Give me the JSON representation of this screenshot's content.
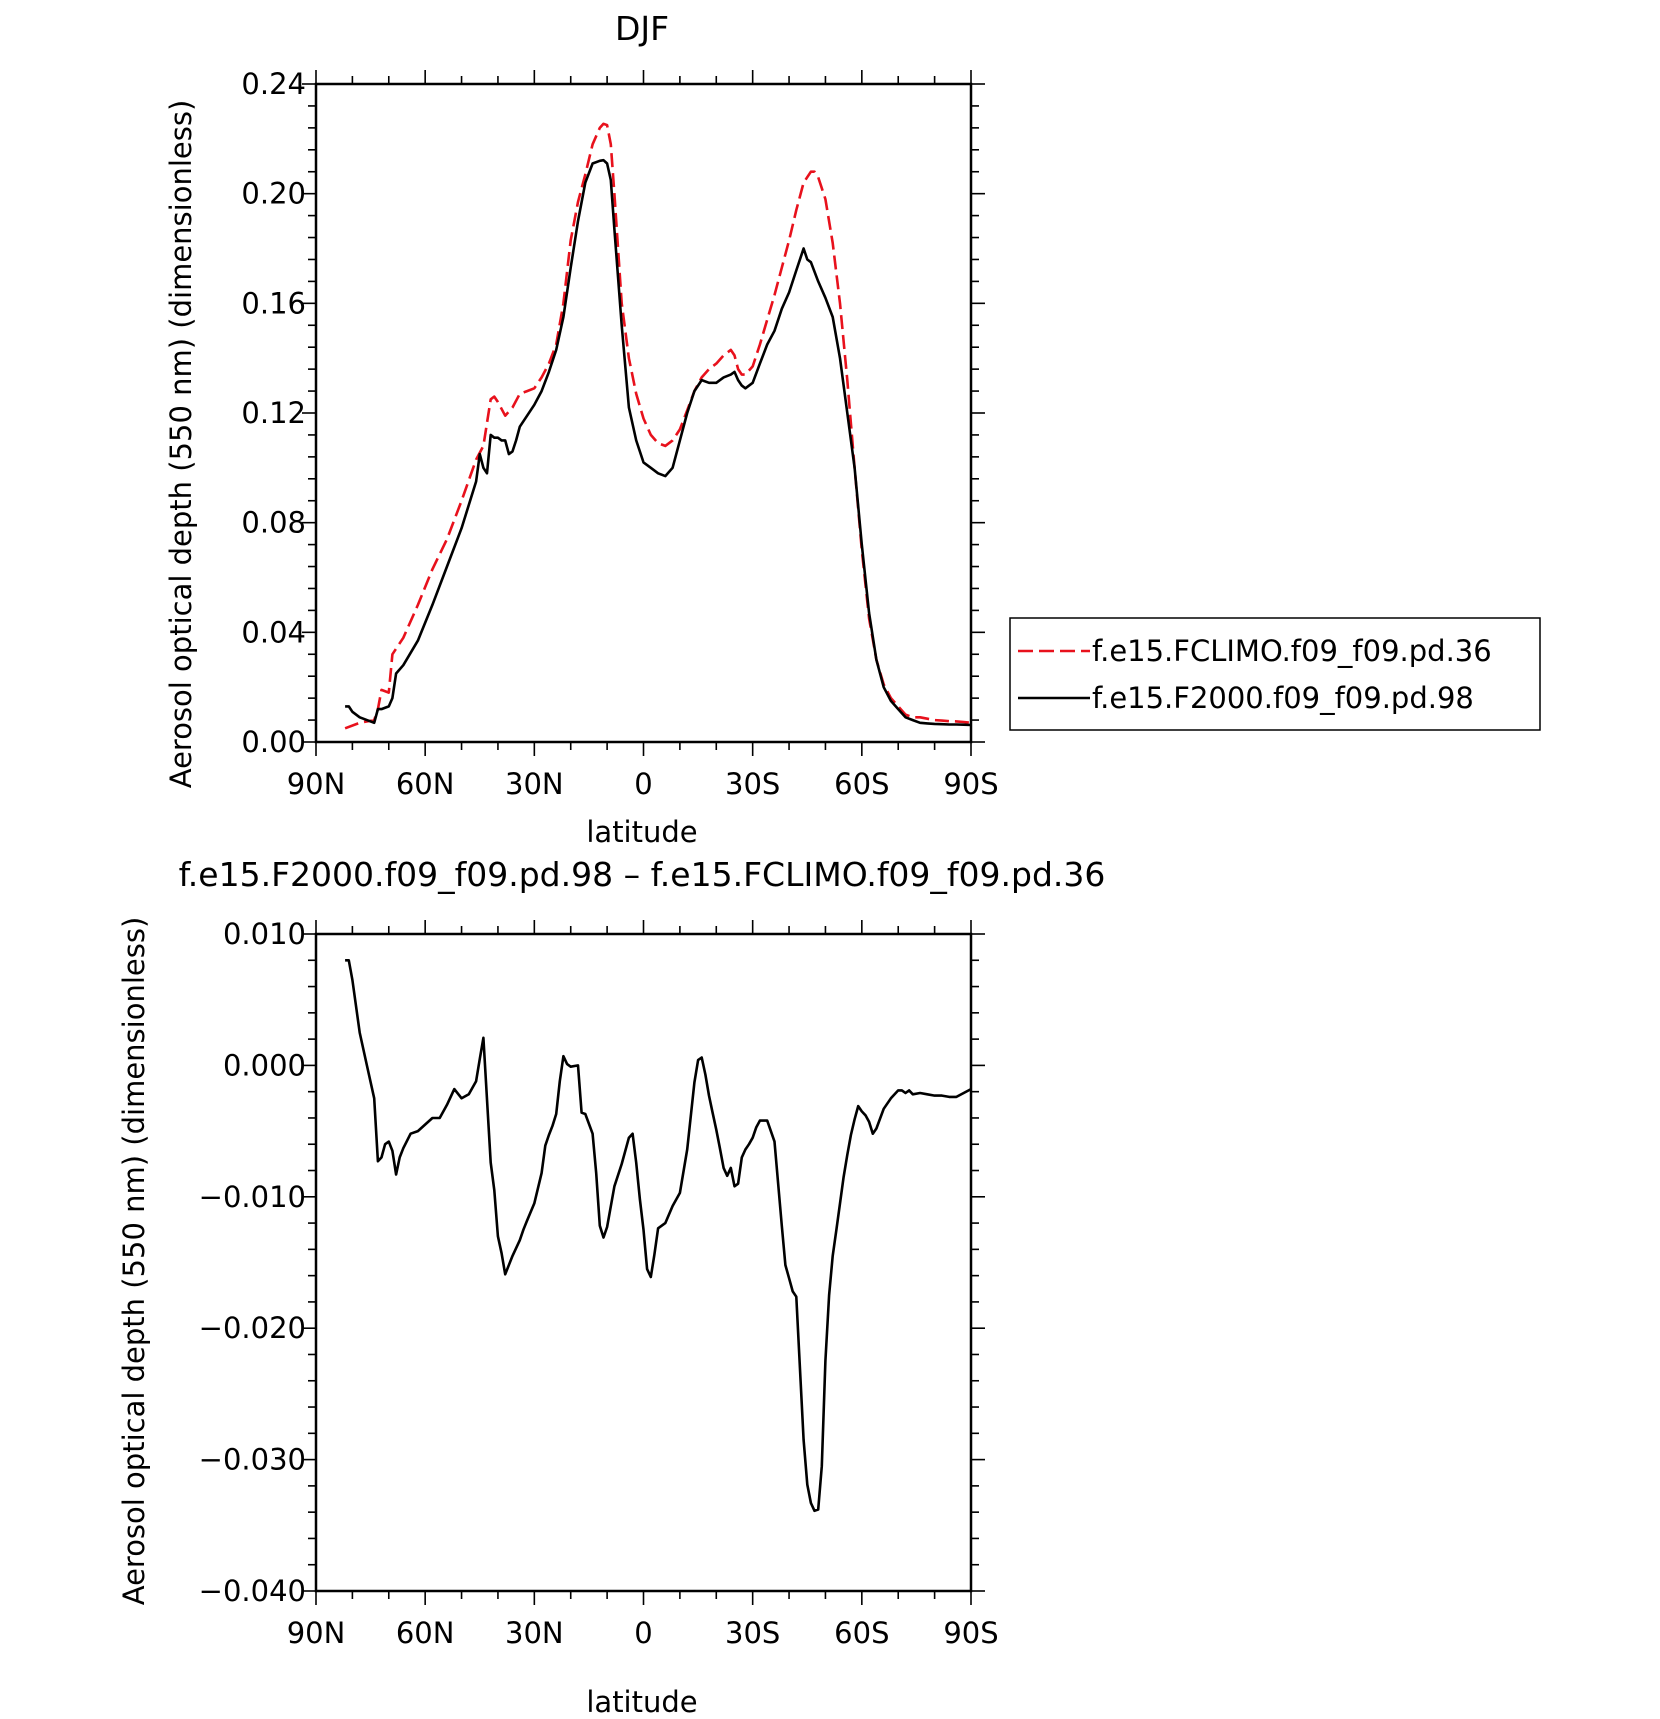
{
  "chart_data": [
    {
      "type": "line",
      "title": "DJF",
      "xlabel": "latitude",
      "ylabel": "Aerosol optical depth (550 nm) (dimensionless)",
      "x_ticks": [
        "90N",
        "60N",
        "30N",
        "0",
        "30S",
        "60S",
        "90S"
      ],
      "y_ticks": [
        "0.00",
        "0.04",
        "0.08",
        "0.12",
        "0.16",
        "0.20",
        "0.24"
      ],
      "xlim": [
        90,
        -90
      ],
      "ylim": [
        0.0,
        0.24
      ],
      "grid": false,
      "legend_position": "outside-right",
      "series": [
        {
          "name": "f.e15.FCLIMO.f09_f09.pd.36",
          "color": "#e8111c",
          "style": "dashed",
          "x": [
            82,
            78,
            74,
            73,
            72,
            70,
            69,
            66,
            62,
            58,
            54,
            50,
            46,
            44,
            42,
            41,
            40,
            38,
            36,
            34,
            32,
            30,
            28,
            26,
            24,
            22,
            20,
            18,
            16,
            14,
            12,
            11,
            10,
            9,
            8,
            6,
            4,
            2,
            0,
            -2,
            -4,
            -6,
            -8,
            -10,
            -12,
            -14,
            -16,
            -18,
            -20,
            -22,
            -24,
            -25,
            -26,
            -27,
            -28,
            -30,
            -32,
            -34,
            -36,
            -38,
            -40,
            -42,
            -44,
            -46,
            -47,
            -48,
            -50,
            -52,
            -54,
            -56,
            -58,
            -60,
            -62,
            -64,
            -66,
            -68,
            -70,
            -72,
            -74,
            -76,
            -78,
            -80,
            -82,
            -84,
            -86,
            -88,
            -90
          ],
          "y": [
            0.005,
            0.007,
            0.008,
            0.012,
            0.019,
            0.018,
            0.032,
            0.038,
            0.05,
            0.063,
            0.074,
            0.088,
            0.103,
            0.108,
            0.125,
            0.126,
            0.124,
            0.119,
            0.122,
            0.127,
            0.128,
            0.129,
            0.133,
            0.138,
            0.145,
            0.16,
            0.183,
            0.197,
            0.207,
            0.218,
            0.224,
            0.2255,
            0.225,
            0.218,
            0.2,
            0.16,
            0.14,
            0.127,
            0.118,
            0.112,
            0.109,
            0.108,
            0.11,
            0.114,
            0.121,
            0.128,
            0.133,
            0.136,
            0.138,
            0.141,
            0.143,
            0.141,
            0.136,
            0.134,
            0.134,
            0.137,
            0.145,
            0.154,
            0.163,
            0.173,
            0.183,
            0.194,
            0.204,
            0.208,
            0.208,
            0.206,
            0.198,
            0.182,
            0.16,
            0.132,
            0.1,
            0.07,
            0.045,
            0.03,
            0.021,
            0.016,
            0.013,
            0.01,
            0.009,
            0.009,
            0.0085,
            0.008,
            0.0078,
            0.0076,
            0.0075,
            0.0073,
            0.007
          ]
        },
        {
          "name": "f.e15.F2000.f09_f09.pd.98",
          "color": "#000000",
          "style": "solid",
          "x": [
            82,
            81,
            80,
            78,
            76,
            74,
            73,
            72,
            70,
            69,
            68,
            66,
            62,
            58,
            54,
            50,
            46,
            45,
            44,
            43,
            42,
            41,
            40,
            39,
            38,
            37,
            36,
            35,
            34,
            32,
            30,
            28,
            26,
            24,
            22,
            20,
            18,
            16,
            14,
            12,
            11,
            10,
            9,
            8,
            6,
            4,
            2,
            0,
            -2,
            -4,
            -6,
            -8,
            -10,
            -12,
            -14,
            -16,
            -18,
            -20,
            -22,
            -24,
            -25,
            -26,
            -27,
            -28,
            -30,
            -32,
            -34,
            -36,
            -38,
            -40,
            -42,
            -44,
            -45,
            -46,
            -48,
            -50,
            -52,
            -54,
            -56,
            -58,
            -60,
            -62,
            -64,
            -66,
            -68,
            -70,
            -72,
            -74,
            -76,
            -78,
            -80,
            -82,
            -84,
            -86,
            -88,
            -90
          ],
          "y": [
            0.013,
            0.013,
            0.011,
            0.009,
            0.008,
            0.007,
            0.012,
            0.012,
            0.013,
            0.016,
            0.025,
            0.028,
            0.037,
            0.05,
            0.064,
            0.078,
            0.095,
            0.105,
            0.1,
            0.098,
            0.112,
            0.111,
            0.111,
            0.11,
            0.11,
            0.105,
            0.106,
            0.11,
            0.115,
            0.119,
            0.123,
            0.128,
            0.135,
            0.143,
            0.155,
            0.173,
            0.19,
            0.204,
            0.211,
            0.212,
            0.2122,
            0.211,
            0.205,
            0.187,
            0.152,
            0.122,
            0.11,
            0.102,
            0.1,
            0.098,
            0.097,
            0.1,
            0.11,
            0.12,
            0.128,
            0.132,
            0.131,
            0.131,
            0.133,
            0.134,
            0.135,
            0.132,
            0.13,
            0.129,
            0.131,
            0.138,
            0.145,
            0.15,
            0.158,
            0.164,
            0.172,
            0.18,
            0.176,
            0.175,
            0.168,
            0.162,
            0.155,
            0.14,
            0.12,
            0.1,
            0.072,
            0.047,
            0.03,
            0.02,
            0.015,
            0.012,
            0.009,
            0.008,
            0.007,
            0.0068,
            0.0066,
            0.0065,
            0.0064,
            0.0064,
            0.0063,
            0.0062
          ]
        }
      ]
    },
    {
      "type": "line",
      "title": "f.e15.F2000.f09_f09.pd.98 – f.e15.FCLIMO.f09_f09.pd.36",
      "xlabel": "latitude",
      "ylabel": "Aerosol optical depth (550 nm) (dimensionless)",
      "x_ticks": [
        "90N",
        "60N",
        "30N",
        "0",
        "30S",
        "60S",
        "90S"
      ],
      "y_ticks": [
        "−0.040",
        "−0.030",
        "−0.020",
        "−0.010",
        "0.000",
        "0.010"
      ],
      "xlim": [
        90,
        -90
      ],
      "ylim": [
        -0.04,
        0.01
      ],
      "grid": false,
      "series": [
        {
          "color": "#000000",
          "style": "solid",
          "x": [
            82,
            81,
            80,
            78,
            76,
            74,
            73,
            72,
            71,
            70,
            69,
            68,
            67,
            66,
            64,
            62,
            60,
            58,
            56,
            54,
            52,
            50,
            48,
            46,
            45,
            44,
            42,
            41,
            40,
            39,
            38,
            36,
            34,
            33,
            32,
            30,
            28,
            27,
            26,
            25,
            24,
            23,
            22,
            21,
            20,
            18,
            17,
            16,
            14,
            13,
            12,
            11,
            10,
            8,
            6,
            4,
            3,
            2,
            1,
            0,
            -1,
            -2,
            -3,
            -4,
            -6,
            -8,
            -10,
            -12,
            -14,
            -15,
            -16,
            -17,
            -18,
            -19,
            -20,
            -21,
            -22,
            -23,
            -24,
            -25,
            -26,
            -27,
            -28,
            -29,
            -30,
            -31,
            -32,
            -33,
            -34,
            -36,
            -38,
            -39,
            -40,
            -41,
            -42,
            -44,
            -45,
            -46,
            -47,
            -48,
            -49,
            -50,
            -51,
            -52,
            -53,
            -54,
            -55,
            -56,
            -57,
            -58,
            -59,
            -60,
            -61,
            -62,
            -63,
            -64,
            -66,
            -68,
            -69,
            -70,
            -71,
            -72,
            -73,
            -74,
            -76,
            -78,
            -80,
            -82,
            -84,
            -86,
            -88,
            -90
          ],
          "y": [
            0.008,
            0.008,
            0.0065,
            0.0025,
            0.0,
            -0.0025,
            -0.0073,
            -0.007,
            -0.006,
            -0.0058,
            -0.0065,
            -0.0083,
            -0.007,
            -0.0063,
            -0.0052,
            -0.005,
            -0.0045,
            -0.004,
            -0.004,
            -0.003,
            -0.0018,
            -0.0025,
            -0.0022,
            -0.0012,
            0.0005,
            0.0021,
            -0.0074,
            -0.0095,
            -0.013,
            -0.0143,
            -0.0159,
            -0.0145,
            -0.0133,
            -0.0125,
            -0.0118,
            -0.0105,
            -0.0082,
            -0.0061,
            -0.0053,
            -0.0046,
            -0.0037,
            -0.0012,
            0.0007,
            0.0001,
            -0.0001,
            -0.0,
            -0.0036,
            -0.0037,
            -0.0052,
            -0.0082,
            -0.0122,
            -0.0131,
            -0.0123,
            -0.0092,
            -0.0075,
            -0.0055,
            -0.0052,
            -0.0074,
            -0.0102,
            -0.0125,
            -0.0155,
            -0.0161,
            -0.0144,
            -0.0124,
            -0.012,
            -0.0107,
            -0.0097,
            -0.0064,
            -0.0013,
            0.0004,
            0.0006,
            -0.0007,
            -0.0023,
            -0.0036,
            -0.0049,
            -0.0063,
            -0.0078,
            -0.0084,
            -0.0078,
            -0.0092,
            -0.009,
            -0.007,
            -0.0064,
            -0.006,
            -0.0055,
            -0.0047,
            -0.0042,
            -0.0042,
            -0.0042,
            -0.0058,
            -0.0122,
            -0.0152,
            -0.0162,
            -0.0172,
            -0.0176,
            -0.0285,
            -0.0319,
            -0.0333,
            -0.0339,
            -0.0338,
            -0.0305,
            -0.0225,
            -0.0175,
            -0.0145,
            -0.0125,
            -0.0105,
            -0.0085,
            -0.0068,
            -0.0053,
            -0.0041,
            -0.0031,
            -0.0035,
            -0.0038,
            -0.0043,
            -0.0052,
            -0.0048,
            -0.0033,
            -0.0025,
            -0.0022,
            -0.0019,
            -0.0019,
            -0.0021,
            -0.0019,
            -0.0022,
            -0.0021,
            -0.0022,
            -0.0023,
            -0.0023,
            -0.0024,
            -0.0024,
            -0.0021,
            -0.0018
          ]
        }
      ]
    }
  ]
}
